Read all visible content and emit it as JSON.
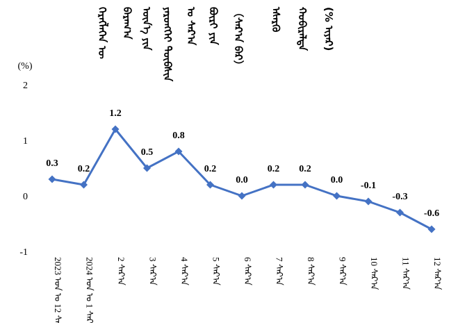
{
  "chart_data": {
    "type": "line",
    "title_columns": [
      "ᠬᠡᠷᠡᠭᠯᠡᠭᠡᠨ ᠦ",
      "ᠪᠠᠷᠠᠭ᠎ᠠ",
      "ᠦᠨ᠎ᠡ ᠶᠢᠨ",
      "ᠶᠡᠷᠦᠩᠬᠡᠢ ᠲᠦᠪᠰᠢᠨ",
      "ᠤ ᠰᠠᠷ᠎ᠠ",
      "ᠪᠦᠷᠢ ᠶᠢᠨ",
      "（ᠰᠠᠷ᠎ᠠ ᠪᠠᠷ）",
      "ᠡᠰᠡᠷᠭᠦ",
      "ᠬᠤᠪᠢᠷᠠᠯᠲᠠ",
      "(% ᠢᠶᠠᠷ)"
    ],
    "yunit": "(%)",
    "ylim": [
      -1,
      2
    ],
    "yticks": [
      "2",
      "1",
      "0",
      "-1"
    ],
    "grid": false,
    "legend": "none",
    "series_color": "#4472c4",
    "categories": [
      {
        "num": "2023 ᠣᠨ ᠤ 12 ᠰᠠᠷ᠎ᠠ"
      },
      {
        "num": "2024 ᠣᠨ ᠤ 1 ᠰᠠᠷ᠎ᠠ"
      },
      {
        "num": "2 ᠰᠠᠷ᠎ᠠ"
      },
      {
        "num": "3 ᠰᠠᠷ᠎ᠠ"
      },
      {
        "num": "4 ᠰᠠᠷ᠎ᠠ"
      },
      {
        "num": "5 ᠰᠠᠷ᠎ᠠ"
      },
      {
        "num": "6 ᠰᠠᠷ᠎ᠠ"
      },
      {
        "num": "7 ᠰᠠᠷ᠎ᠠ"
      },
      {
        "num": "8 ᠰᠠᠷ᠎ᠠ"
      },
      {
        "num": "9 ᠰᠠᠷ᠎ᠠ"
      },
      {
        "num": "10 ᠰᠠᠷ᠎ᠠ"
      },
      {
        "num": "11 ᠰᠠᠷ᠎ᠠ"
      },
      {
        "num": "12 ᠰᠠᠷ᠎ᠠ"
      }
    ],
    "values": [
      0.3,
      0.2,
      1.2,
      0.5,
      0.8,
      0.2,
      0.0,
      0.2,
      0.2,
      0.0,
      -0.1,
      -0.3,
      -0.6
    ],
    "value_labels": [
      "0.3",
      "0.2",
      "1.2",
      "0.5",
      "0.8",
      "0.2",
      "0.0",
      "0.2",
      "0.2",
      "0.0",
      "-0.1",
      "-0.3",
      "-0.6"
    ]
  }
}
